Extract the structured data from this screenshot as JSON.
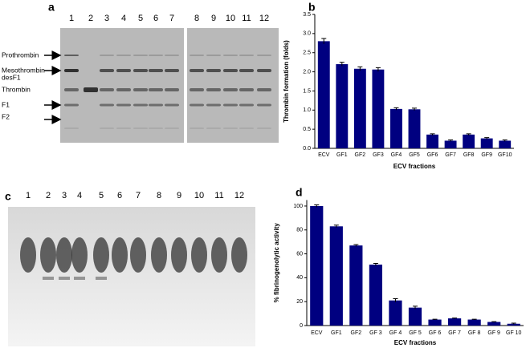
{
  "panels": [
    "a",
    "b",
    "c",
    "d"
  ],
  "gel_a": {
    "lanes": [
      "1",
      "2",
      "3",
      "4",
      "5",
      "6",
      "7",
      "8",
      "9",
      "10",
      "11",
      "12"
    ],
    "bands": [
      "Prothrombin",
      "Mesothrombin",
      "desF1",
      "Thrombin",
      "F1",
      "F2"
    ]
  },
  "gel_c": {
    "lanes": [
      "1",
      "2",
      "3",
      "4",
      "5",
      "6",
      "7",
      "8",
      "9",
      "10",
      "11",
      "12"
    ]
  },
  "chart_data": [
    {
      "type": "bar",
      "x_label": "ECV fractions",
      "y_label": "Thrombin formation (folds)",
      "categories": [
        "ECV",
        "GF1",
        "GF2",
        "GF3",
        "GF4",
        "GF5",
        "GF6",
        "GF7",
        "GF8",
        "GF9",
        "GF10"
      ],
      "values": [
        2.8,
        2.2,
        2.08,
        2.06,
        1.03,
        1.02,
        0.36,
        0.2,
        0.36,
        0.26,
        0.2
      ],
      "errors": [
        0.07,
        0.05,
        0.05,
        0.05,
        0.03,
        0.03,
        0.02,
        0.02,
        0.02,
        0.02,
        0.02
      ],
      "color": "#000080",
      "ylim": [
        0,
        3.5
      ],
      "yticks": [
        {
          "value": 0,
          "label": "0.0"
        },
        0.5,
        {
          "value": 1,
          "label": "1.0"
        },
        1.5,
        {
          "value": 2,
          "label": "2.0"
        },
        2.5,
        {
          "value": 3,
          "label": "3.0"
        },
        3.5
      ]
    },
    {
      "type": "bar",
      "x_label": "ECV fractions",
      "y_label": "% fibrinogenolytic activity",
      "categories": [
        "ECV",
        "GF1",
        "GF2",
        "GF 3",
        "GF 4",
        "GF 5",
        "GF 6",
        "GF 7",
        "GF 8",
        "GF 9",
        "GF 10"
      ],
      "values": [
        100,
        83,
        67,
        51,
        21,
        15,
        5,
        6,
        5,
        3,
        1.5
      ],
      "errors": [
        1,
        1,
        0.8,
        1,
        1.5,
        1.2,
        0.3,
        0.3,
        0.3,
        0.3,
        0.5
      ],
      "color": "#000080",
      "ylim": [
        0,
        105
      ],
      "yticks": [
        0,
        20,
        40,
        60,
        80,
        100
      ]
    }
  ]
}
